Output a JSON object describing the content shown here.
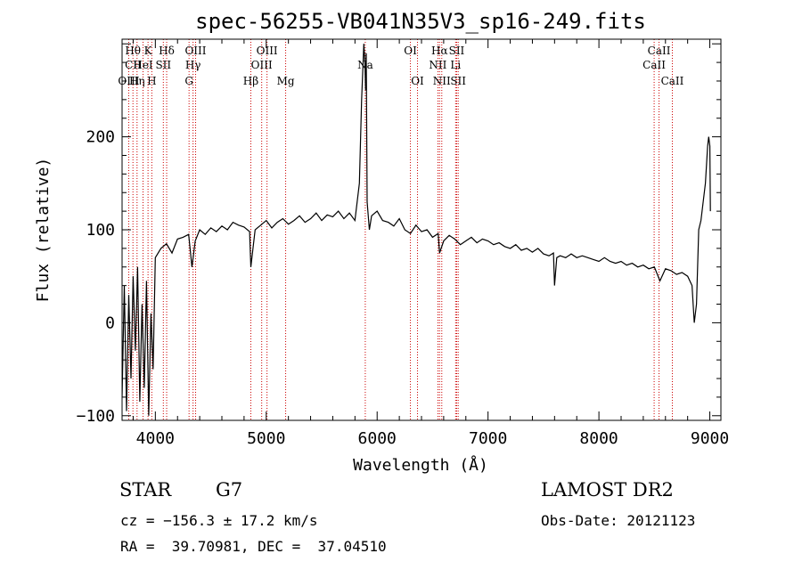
{
  "chart_data": {
    "type": "line",
    "title": "spec-56255-VB041N35V3_sp16-249.fits",
    "xlabel": "Wavelength (Å)",
    "ylabel": "Flux (relative)",
    "xlim": [
      3700,
      9100
    ],
    "ylim": [
      -105,
      305
    ],
    "x_ticks": [
      4000,
      5000,
      6000,
      7000,
      8000,
      9000
    ],
    "y_ticks": [
      -100,
      0,
      100,
      200
    ],
    "grid": false,
    "series": [
      {
        "x": [
          3700,
          3720,
          3740,
          3760,
          3780,
          3800,
          3820,
          3840,
          3860,
          3880,
          3900,
          3920,
          3940,
          3960,
          3980,
          4000,
          4050,
          4100,
          4150,
          4200,
          4250,
          4300,
          4330,
          4360,
          4400,
          4450,
          4500,
          4550,
          4600,
          4650,
          4700,
          4750,
          4800,
          4850,
          4861,
          4900,
          4950,
          5000,
          5050,
          5100,
          5150,
          5200,
          5250,
          5300,
          5350,
          5400,
          5450,
          5500,
          5550,
          5600,
          5650,
          5700,
          5750,
          5800,
          5840,
          5860,
          5880,
          5890,
          5896,
          5902,
          5910,
          5930,
          5950,
          6000,
          6050,
          6100,
          6150,
          6200,
          6250,
          6300,
          6350,
          6400,
          6450,
          6500,
          6550,
          6563,
          6600,
          6650,
          6700,
          6750,
          6800,
          6850,
          6900,
          6950,
          7000,
          7050,
          7100,
          7150,
          7200,
          7250,
          7300,
          7350,
          7400,
          7450,
          7500,
          7550,
          7590,
          7600,
          7620,
          7650,
          7700,
          7750,
          7800,
          7850,
          7900,
          7950,
          8000,
          8050,
          8100,
          8150,
          8200,
          8250,
          8300,
          8350,
          8400,
          8450,
          8500,
          8550,
          8600,
          8650,
          8700,
          8750,
          8800,
          8840,
          8860,
          8880,
          8900,
          8920,
          8940,
          8960,
          8980,
          8990,
          9000,
          9005
        ],
        "values": [
          -80,
          40,
          -95,
          30,
          -60,
          50,
          -30,
          60,
          -85,
          20,
          -70,
          45,
          -100,
          10,
          -50,
          70,
          80,
          85,
          75,
          90,
          92,
          95,
          60,
          88,
          100,
          95,
          102,
          98,
          104,
          100,
          108,
          105,
          103,
          98,
          60,
          100,
          105,
          110,
          102,
          108,
          112,
          106,
          110,
          115,
          108,
          112,
          118,
          110,
          116,
          114,
          120,
          112,
          118,
          110,
          150,
          240,
          300,
          280,
          250,
          290,
          130,
          100,
          115,
          120,
          110,
          108,
          104,
          112,
          100,
          96,
          105,
          98,
          100,
          92,
          96,
          75,
          88,
          94,
          90,
          84,
          88,
          92,
          86,
          90,
          88,
          84,
          86,
          82,
          80,
          84,
          78,
          80,
          76,
          80,
          74,
          72,
          75,
          40,
          70,
          72,
          70,
          74,
          70,
          72,
          70,
          68,
          66,
          70,
          66,
          64,
          66,
          62,
          64,
          60,
          62,
          58,
          60,
          45,
          58,
          56,
          52,
          54,
          50,
          40,
          0,
          20,
          100,
          110,
          130,
          150,
          190,
          200,
          190,
          120
        ]
      }
    ],
    "line_labels": [
      {
        "text": "Hθ",
        "x": 3798,
        "row": 1
      },
      {
        "text": "K",
        "x": 3934,
        "row": 1
      },
      {
        "text": "Hδ",
        "x": 4102,
        "row": 1
      },
      {
        "text": "OIII",
        "x": 4363,
        "row": 1
      },
      {
        "text": "OIII",
        "x": 5007,
        "row": 1
      },
      {
        "text": "OI",
        "x": 6300,
        "row": 1
      },
      {
        "text": "Hα",
        "x": 6563,
        "row": 1
      },
      {
        "text": "SII",
        "x": 6717,
        "row": 1
      },
      {
        "text": "CaII",
        "x": 8542,
        "row": 1
      },
      {
        "text": "CII",
        "x": 3800,
        "row": 2
      },
      {
        "text": "HeI",
        "x": 3889,
        "row": 2
      },
      {
        "text": "SII",
        "x": 4072,
        "row": 2
      },
      {
        "text": "Hγ",
        "x": 4340,
        "row": 2
      },
      {
        "text": "OIII",
        "x": 4959,
        "row": 2
      },
      {
        "text": "Na",
        "x": 5893,
        "row": 2
      },
      {
        "text": "NII",
        "x": 6548,
        "row": 2
      },
      {
        "text": "Li",
        "x": 6708,
        "row": 2
      },
      {
        "text": "CaII",
        "x": 8498,
        "row": 2
      },
      {
        "text": "OIII",
        "x": 3760,
        "row": 3
      },
      {
        "text": "Hη",
        "x": 3835,
        "row": 3
      },
      {
        "text": "H",
        "x": 3968,
        "row": 3
      },
      {
        "text": "G",
        "x": 4304,
        "row": 3
      },
      {
        "text": "Hβ",
        "x": 4861,
        "row": 3
      },
      {
        "text": "Mg",
        "x": 5175,
        "row": 3
      },
      {
        "text": "OI",
        "x": 6364,
        "row": 3
      },
      {
        "text": "NII",
        "x": 6583,
        "row": 3
      },
      {
        "text": "SII",
        "x": 6731,
        "row": 3
      },
      {
        "text": "CaII",
        "x": 8662,
        "row": 3
      }
    ],
    "vlines": [
      3760,
      3798,
      3835,
      3889,
      3934,
      3968,
      4072,
      4102,
      4304,
      4340,
      4363,
      4861,
      4959,
      5007,
      5175,
      5893,
      6300,
      6364,
      6548,
      6563,
      6583,
      6708,
      6717,
      6731,
      8498,
      8542,
      8662
    ],
    "vline_color": "#cc0000"
  },
  "info": {
    "object_class": "STAR",
    "subclass": "G7",
    "survey": "LAMOST DR2",
    "cz": "cz = −156.3 ± 17.2 km/s",
    "obs_date": "Obs-Date: 20121123",
    "radec": "RA =  39.70981, DEC =  37.04510"
  }
}
